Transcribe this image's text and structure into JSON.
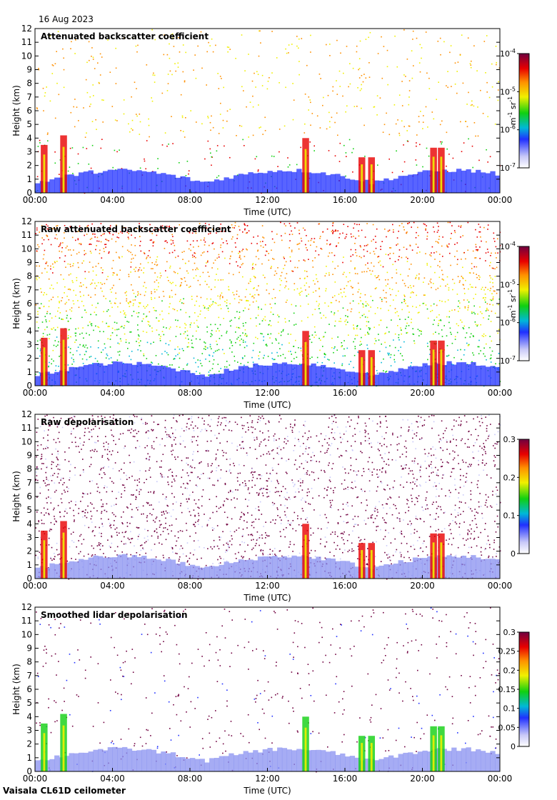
{
  "date": "16 Aug 2023",
  "footer": "Vaisala CL61D ceilometer",
  "chart_data": [
    {
      "type": "heatmap",
      "title": "Attenuated backscatter coefficient",
      "xlabel": "Time (UTC)",
      "ylabel": "Height (km)",
      "xticks": [
        "00:00",
        "04:00",
        "08:00",
        "12:00",
        "16:00",
        "20:00",
        "00:00"
      ],
      "xlim": [
        0,
        24
      ],
      "yticks": [
        0,
        1,
        2,
        3,
        4,
        5,
        6,
        7,
        8,
        9,
        10,
        11,
        12
      ],
      "ylim": [
        0,
        12
      ],
      "colorbar": {
        "scale": "log",
        "ticks": [
          {
            "base": "10",
            "exp": "-4"
          },
          {
            "base": "10",
            "exp": "-5"
          },
          {
            "base": "10",
            "exp": "-6"
          },
          {
            "base": "10",
            "exp": "-7"
          }
        ],
        "range": [
          1e-07,
          0.0001
        ],
        "unit": {
          "a": "m",
          "a_exp": "-1",
          "b": "sr",
          "b_exp": "-1"
        }
      },
      "style": "att"
    },
    {
      "type": "heatmap",
      "title": "Raw attenuated backscatter coefficient",
      "xlabel": "Time (UTC)",
      "ylabel": "Height (km)",
      "xticks": [
        "00:00",
        "04:00",
        "08:00",
        "12:00",
        "16:00",
        "20:00",
        "00:00"
      ],
      "xlim": [
        0,
        24
      ],
      "yticks": [
        0,
        1,
        2,
        3,
        4,
        5,
        6,
        7,
        8,
        9,
        10,
        11,
        12
      ],
      "ylim": [
        0,
        12
      ],
      "colorbar": {
        "scale": "log",
        "ticks": [
          {
            "base": "10",
            "exp": "-4"
          },
          {
            "base": "10",
            "exp": "-5"
          },
          {
            "base": "10",
            "exp": "-6"
          },
          {
            "base": "10",
            "exp": "-7"
          }
        ],
        "range": [
          1e-07,
          0.0001
        ],
        "unit": {
          "a": "m",
          "a_exp": "-1",
          "b": "sr",
          "b_exp": "-1"
        }
      },
      "style": "raw"
    },
    {
      "type": "heatmap",
      "title": "Raw depolarisation",
      "xlabel": "Time (UTC)",
      "ylabel": "Height (km)",
      "xticks": [
        "00:00",
        "04:00",
        "08:00",
        "12:00",
        "16:00",
        "20:00",
        "00:00"
      ],
      "xlim": [
        0,
        24
      ],
      "yticks": [
        0,
        1,
        2,
        3,
        4,
        5,
        6,
        7,
        8,
        9,
        10,
        11,
        12
      ],
      "ylim": [
        0,
        12
      ],
      "colorbar": {
        "scale": "linear",
        "ticks": [
          "0.3",
          "0.2",
          "0.1",
          "0"
        ],
        "range": [
          0,
          0.3
        ]
      },
      "style": "rawdepol"
    },
    {
      "type": "heatmap",
      "title": "Smoothed lidar depolarisation",
      "xlabel": "Time (UTC)",
      "ylabel": "Height (km)",
      "xticks": [
        "00:00",
        "04:00",
        "08:00",
        "12:00",
        "16:00",
        "20:00",
        "00:00"
      ],
      "xlim": [
        0,
        24
      ],
      "yticks": [
        0,
        1,
        2,
        3,
        4,
        5,
        6,
        7,
        8,
        9,
        10,
        11,
        12
      ],
      "ylim": [
        0,
        12
      ],
      "colorbar": {
        "scale": "linear",
        "ticks": [
          "0.3",
          "0.25",
          "0.2",
          "0.15",
          "0.1",
          "0.05",
          "0"
        ],
        "range": [
          0,
          0.3
        ]
      },
      "style": "smooth"
    }
  ]
}
